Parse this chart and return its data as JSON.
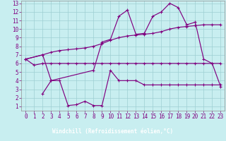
{
  "bg_color": "#c8eef0",
  "grid_color": "#9ecfd2",
  "line_color": "#800080",
  "xlabel": "Windchill (Refroidissement éolien,°C)",
  "line1_x": [
    0,
    1,
    2,
    3,
    4,
    5,
    6,
    7,
    8,
    9,
    10,
    11,
    12,
    13,
    14,
    15,
    16,
    17,
    18,
    19,
    20,
    21,
    22,
    23
  ],
  "line1_y": [
    6.5,
    5.8,
    6.0,
    6.0,
    6.0,
    6.0,
    6.0,
    6.0,
    6.0,
    6.0,
    6.0,
    6.0,
    6.0,
    6.0,
    6.0,
    6.0,
    6.0,
    6.0,
    6.0,
    6.0,
    6.0,
    6.0,
    6.0,
    6.0
  ],
  "line2_x": [
    0,
    2,
    3,
    4,
    5,
    6,
    7,
    8,
    9,
    10,
    11,
    12,
    13,
    14,
    15,
    16,
    17,
    18,
    19,
    20,
    21,
    22,
    23
  ],
  "line2_y": [
    6.5,
    7.0,
    7.3,
    7.5,
    7.6,
    7.7,
    7.8,
    8.0,
    8.3,
    8.7,
    9.0,
    9.2,
    9.3,
    9.4,
    9.5,
    9.7,
    10.0,
    10.2,
    10.3,
    10.4,
    10.5,
    10.5,
    10.5
  ],
  "line3_x": [
    0,
    2,
    3,
    8,
    9,
    10,
    11,
    12,
    13,
    14,
    15,
    16,
    17,
    18,
    19,
    20,
    21,
    22,
    23
  ],
  "line3_y": [
    6.5,
    7.0,
    4.0,
    5.2,
    8.5,
    8.8,
    11.5,
    12.2,
    9.4,
    9.5,
    11.5,
    12.0,
    13.0,
    12.5,
    10.5,
    10.8,
    6.5,
    6.0,
    3.3
  ],
  "line4_x": [
    2,
    3,
    4,
    5,
    6,
    7,
    8,
    9,
    10,
    11,
    12,
    13,
    14,
    15,
    16,
    17,
    18,
    19,
    20,
    21,
    22,
    23
  ],
  "line4_y": [
    2.5,
    4.0,
    4.0,
    1.1,
    1.2,
    1.6,
    1.1,
    1.1,
    5.2,
    4.0,
    4.0,
    4.0,
    3.5,
    3.5,
    3.5,
    3.5,
    3.5,
    3.5,
    3.5,
    3.5,
    3.5,
    3.5
  ],
  "xlim": [
    0,
    23
  ],
  "ylim_min": 1,
  "ylim_max": 13,
  "xticks": [
    0,
    1,
    2,
    3,
    4,
    5,
    6,
    7,
    8,
    9,
    10,
    11,
    12,
    13,
    14,
    15,
    16,
    17,
    18,
    19,
    20,
    21,
    22,
    23
  ],
  "yticks": [
    1,
    2,
    3,
    4,
    5,
    6,
    7,
    8,
    9,
    10,
    11,
    12,
    13
  ],
  "tick_fontsize": 5.5,
  "xlabel_fontsize": 5.5
}
